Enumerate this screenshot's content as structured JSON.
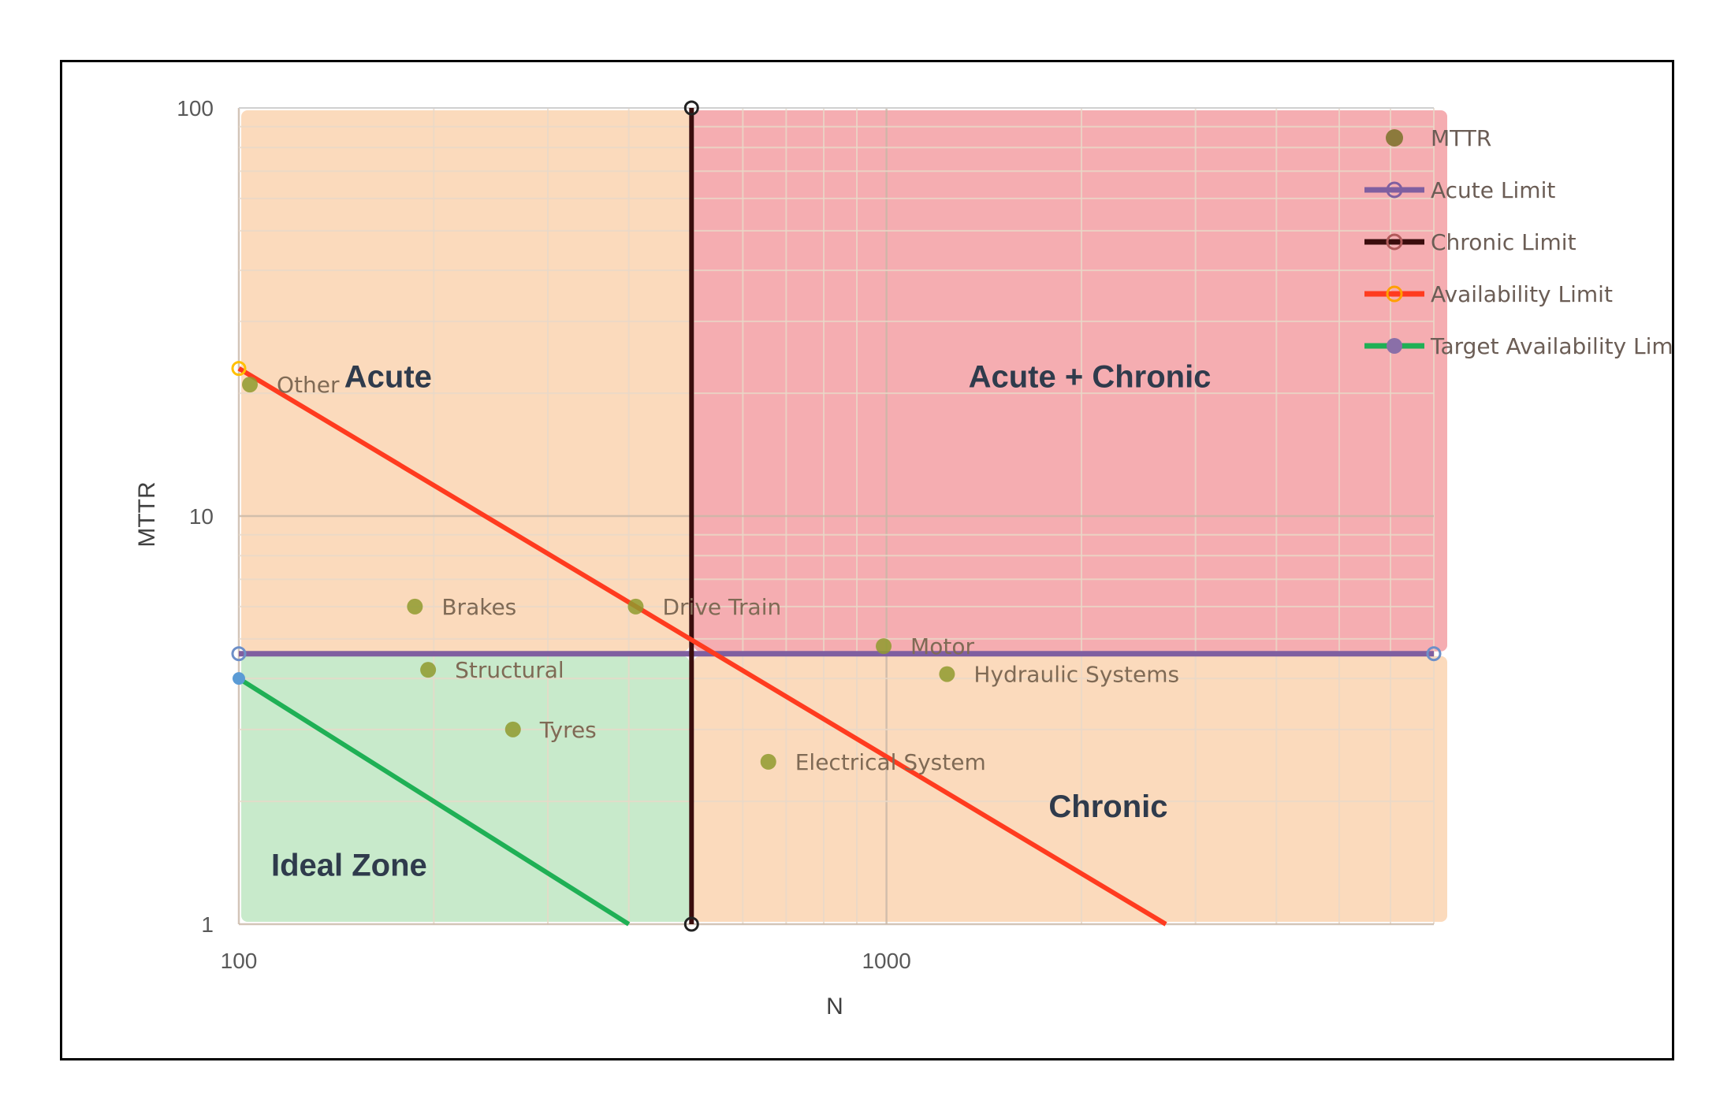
{
  "chart_data": {
    "type": "scatter",
    "xlabel": "N",
    "ylabel": "MTTR",
    "x_scale": "log",
    "y_scale": "log",
    "xlim": [
      100,
      7000
    ],
    "ylim": [
      1,
      100
    ],
    "x_ticks": [
      "100",
      "1000"
    ],
    "y_ticks": [
      "1",
      "10",
      "100"
    ],
    "grid": true,
    "legend_position": "top-right",
    "colors": {
      "mttr": "#8c7a3c",
      "acute_limit": "#7f5fa0",
      "chronic_limit": "#3a0d0d",
      "availability_limit": "#ff3b1f",
      "target_availability_limit": "#1fb055",
      "zone_acute": "#fbd8b8",
      "zone_chronic": "#fbd8b8",
      "zone_acute_chronic": "#f4a9ad",
      "zone_ideal": "#c5e9c8"
    },
    "zones": [
      {
        "name": "Acute",
        "color_key": "zone_acute",
        "x": [
          100,
          500
        ],
        "y": [
          4.6,
          100
        ]
      },
      {
        "name": "Acute + Chronic",
        "color_key": "zone_acute_chronic",
        "x": [
          500,
          7000
        ],
        "y": [
          4.6,
          100
        ]
      },
      {
        "name": "Chronic",
        "color_key": "zone_chronic",
        "x": [
          500,
          7000
        ],
        "y": [
          1,
          4.6
        ]
      },
      {
        "name": "Ideal Zone",
        "color_key": "zone_ideal",
        "x": [
          100,
          500
        ],
        "y": [
          1,
          4.6
        ]
      }
    ],
    "series": [
      {
        "name": "MTTR",
        "kind": "points",
        "color_key": "mttr",
        "points": [
          {
            "label": "Other",
            "x": 104,
            "y": 21
          },
          {
            "label": "Brakes",
            "x": 187,
            "y": 6.0
          },
          {
            "label": "Structural",
            "x": 196,
            "y": 4.2
          },
          {
            "label": "Tyres",
            "x": 265,
            "y": 3.0
          },
          {
            "label": "Drive Train",
            "x": 410,
            "y": 6.0
          },
          {
            "label": "Motor",
            "x": 990,
            "y": 4.8
          },
          {
            "label": "Hydraulic Systems",
            "x": 1240,
            "y": 4.1
          },
          {
            "label": "Electrical System",
            "x": 657,
            "y": 2.5
          }
        ]
      },
      {
        "name": "Acute Limit",
        "kind": "line",
        "color_key": "acute_limit",
        "points": [
          [
            100,
            4.6
          ],
          [
            7000,
            4.6
          ]
        ]
      },
      {
        "name": "Chronic Limit",
        "kind": "line",
        "color_key": "chronic_limit",
        "points": [
          [
            500,
            1
          ],
          [
            500,
            100
          ]
        ]
      },
      {
        "name": "Availability Limit",
        "kind": "line",
        "color_key": "availability_limit",
        "points": [
          [
            100,
            23
          ],
          [
            2700,
            1
          ]
        ]
      },
      {
        "name": "Target Availability Limit",
        "kind": "line",
        "color_key": "target_availability_limit",
        "points": [
          [
            100,
            4.0
          ],
          [
            400,
            1
          ]
        ]
      }
    ],
    "legend": [
      "MTTR",
      "Acute Limit",
      "Chronic Limit",
      "Availability Limit",
      "Target Availability Limit"
    ]
  }
}
